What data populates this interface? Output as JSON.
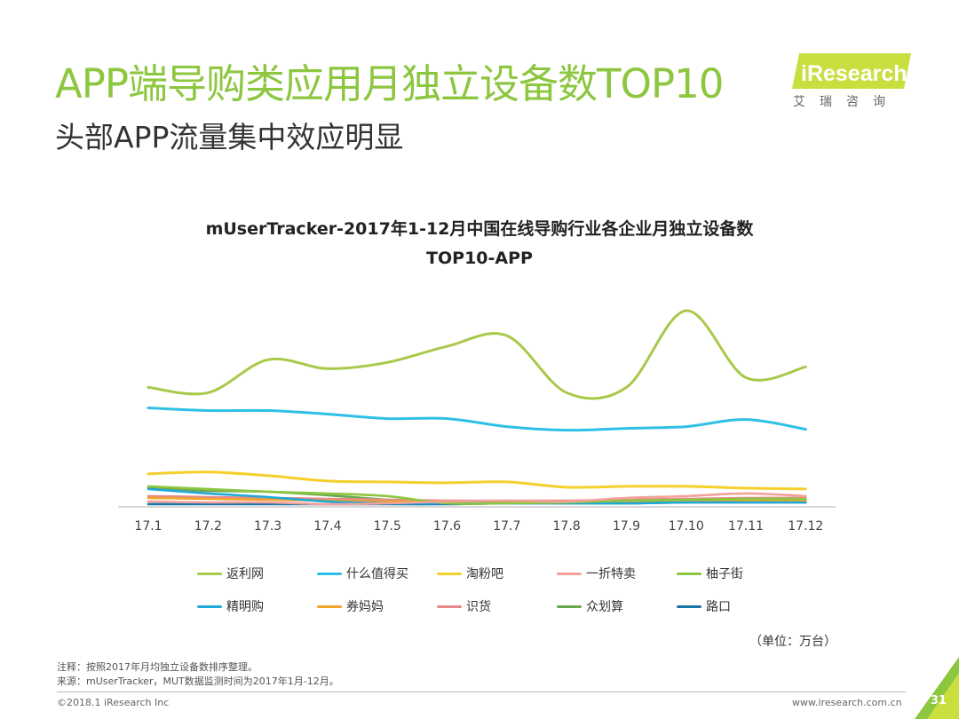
{
  "header": {
    "title": "APP端导购类应用月独立设备数TOP10",
    "subtitle": "头部APP流量集中效应明显"
  },
  "logo": {
    "brand": "iResearch",
    "tagline": "艾瑞咨询",
    "colors": {
      "green": "#c9df3f",
      "text": "#ffffff"
    }
  },
  "chart_data": {
    "type": "line",
    "title_line1": "mUserTracker-2017年1-12月中国在线导购行业各企业月独立设备数",
    "title_line2": "TOP10-APP",
    "categories": [
      "17.1",
      "17.2",
      "17.3",
      "17.4",
      "17.5",
      "17.6",
      "17.7",
      "17.8",
      "17.9",
      "17.10",
      "17.11",
      "17.12"
    ],
    "ylim": [
      0,
      230
    ],
    "grid": false,
    "legend_position": "bottom",
    "unit": "（单位：万台）",
    "series": [
      {
        "name": "返利网",
        "color": "#a9c94a",
        "values": [
          134,
          128,
          165,
          155,
          162,
          180,
          192,
          128,
          134,
          220,
          145,
          157
        ]
      },
      {
        "name": "什么值得买",
        "color": "#2ec0e4",
        "values": [
          111,
          108,
          108,
          104,
          99,
          99,
          90,
          86,
          88,
          90,
          98,
          87
        ]
      },
      {
        "name": "淘粉吧",
        "color": "#f5cf2b",
        "values": [
          37,
          39,
          35,
          29,
          28,
          27,
          28,
          22,
          23,
          23,
          21,
          20
        ]
      },
      {
        "name": "一折特卖",
        "color": "#f4a09a",
        "values": [
          6,
          5,
          5,
          3,
          4,
          6,
          7,
          6,
          10,
          12,
          15,
          12
        ]
      },
      {
        "name": "柚子街",
        "color": "#8dc63f",
        "values": [
          23,
          20,
          17,
          15,
          12,
          4,
          4,
          5,
          7,
          8,
          9,
          9
        ]
      },
      {
        "name": "精明购",
        "color": "#1fa8d8",
        "values": [
          20,
          15,
          11,
          6,
          4,
          4,
          4,
          4,
          4,
          5,
          5,
          5
        ]
      },
      {
        "name": "券妈妈",
        "color": "#f0a52a",
        "values": [
          10,
          9,
          8,
          7,
          6,
          6,
          6,
          6,
          6,
          7,
          7,
          7
        ]
      },
      {
        "name": "识货",
        "color": "#e68a8a",
        "values": [
          12,
          11,
          10,
          9,
          8,
          7,
          7,
          7,
          8,
          9,
          10,
          10
        ]
      },
      {
        "name": "众划算",
        "color": "#6aa84f",
        "values": [
          21,
          18,
          17,
          13,
          8,
          5,
          5,
          4,
          4,
          5,
          6,
          6
        ]
      },
      {
        "name": "路口",
        "color": "#1a76a8",
        "values": [
          3,
          3,
          3,
          3,
          3,
          3,
          4,
          4,
          4,
          5,
          5,
          5
        ]
      }
    ]
  },
  "footnotes": {
    "note": "注释：按照2017年月均独立设备数排序整理。",
    "source": "来源：mUserTracker，MUT数据监测时间为2017年1月-12月。"
  },
  "footer": {
    "copyright": "©2018.1 iResearch Inc",
    "url": "www.iresearch.com.cn",
    "page_number": "31"
  }
}
